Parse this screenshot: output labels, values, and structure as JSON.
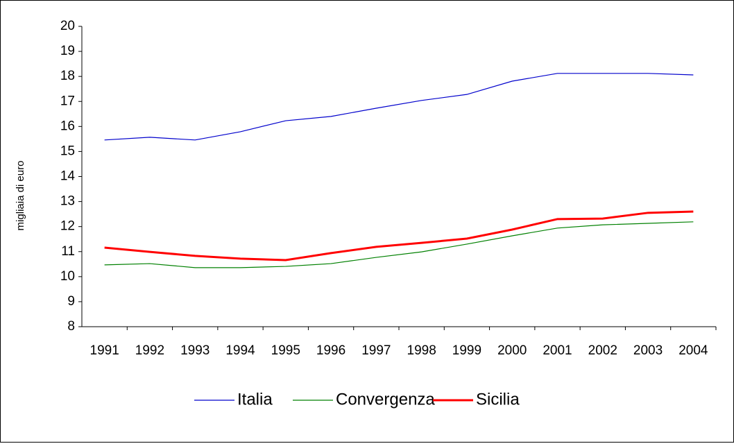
{
  "chart_data": {
    "type": "line",
    "y_label": "migliaia di euro",
    "categories": [
      "1991",
      "1992",
      "1993",
      "1994",
      "1995",
      "1996",
      "1997",
      "1998",
      "1999",
      "2000",
      "2001",
      "2002",
      "2003",
      "2004"
    ],
    "series": [
      {
        "name": "Italia",
        "color": "#0000cc",
        "width": 1.2,
        "values": [
          15.46,
          15.57,
          15.46,
          15.79,
          16.23,
          16.4,
          16.73,
          17.04,
          17.28,
          17.81,
          18.12,
          18.12,
          18.12,
          18.06
        ]
      },
      {
        "name": "Convergenza",
        "color": "#008000",
        "width": 1.2,
        "values": [
          10.47,
          10.52,
          10.36,
          10.36,
          10.41,
          10.52,
          10.77,
          10.99,
          11.3,
          11.63,
          11.94,
          12.07,
          12.13,
          12.19
        ]
      },
      {
        "name": "Sicilia",
        "color": "#ff0000",
        "width": 3,
        "values": [
          11.16,
          10.99,
          10.83,
          10.72,
          10.66,
          10.94,
          11.19,
          11.35,
          11.52,
          11.88,
          12.3,
          12.32,
          12.55,
          12.6
        ]
      }
    ],
    "ylim": [
      8,
      20
    ],
    "yticks": [
      8,
      9,
      10,
      11,
      12,
      13,
      14,
      15,
      16,
      17,
      18,
      19,
      20
    ],
    "legend": "bottom"
  }
}
